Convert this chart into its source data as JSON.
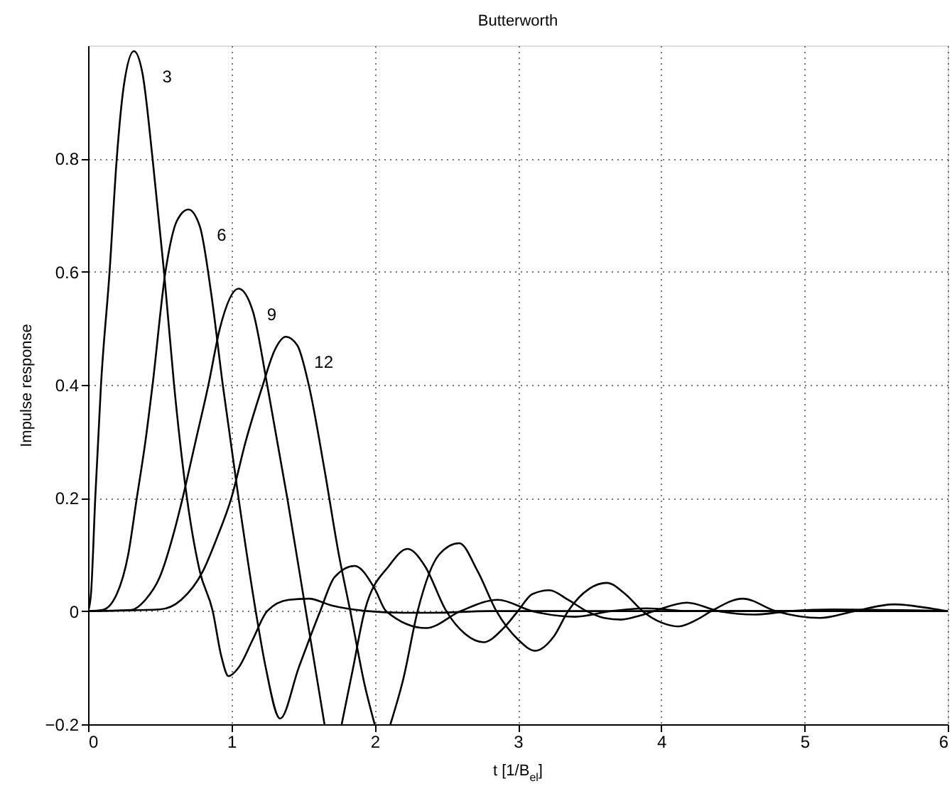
{
  "chart_data": {
    "type": "line",
    "title": "Butterworth",
    "xlabel": "t [1/B$_{el}$]",
    "ylabel": "Impulse response",
    "xlim": [
      0,
      6
    ],
    "xticks": [
      0,
      1,
      2,
      3,
      4,
      5,
      6
    ],
    "ylim": [
      -0.2,
      1.0
    ],
    "yticks": [
      -0.2,
      0,
      0.2,
      0.4,
      0.6,
      0.8
    ],
    "grid": true,
    "legend": false,
    "line_style": "solid",
    "marker": "none",
    "series": [
      {
        "name": "3",
        "color": "#000000",
        "x": [
          0,
          0.02,
          0.05,
          0.09,
          0.15,
          0.2,
          0.25,
          0.32,
          0.38,
          0.45,
          0.53,
          0.6,
          0.69,
          0.78,
          0.87,
          0.93,
          0.98,
          1.05,
          1.15,
          1.25,
          1.4,
          1.54,
          1.7,
          1.95,
          2.2,
          2.4,
          2.8,
          3.5,
          6
        ],
        "values": [
          0,
          0.03,
          0.2,
          0.4,
          0.6,
          0.8,
          0.93,
          0.99,
          0.95,
          0.8,
          0.6,
          0.4,
          0.2,
          0.07,
          0,
          -0.08,
          -0.115,
          -0.1,
          -0.05,
          0,
          0.02,
          0.022,
          0.01,
          0,
          -0.003,
          -0.003,
          0,
          0,
          0
        ]
      },
      {
        "name": "6",
        "color": "#000000",
        "x": [
          0,
          0.1,
          0.2,
          0.28,
          0.34,
          0.4,
          0.45,
          0.54,
          0.62,
          0.7,
          0.78,
          0.86,
          0.94,
          1.05,
          1.17,
          1.24,
          1.34,
          1.47,
          1.62,
          1.72,
          1.86,
          2.0,
          2.08,
          2.36,
          2.6,
          2.86,
          3.1,
          3.4,
          3.65,
          3.9,
          4.2,
          6
        ],
        "values": [
          0,
          0.002,
          0.03,
          0.1,
          0.2,
          0.3,
          0.4,
          0.6,
          0.69,
          0.71,
          0.68,
          0.56,
          0.4,
          0.2,
          0,
          -0.1,
          -0.19,
          -0.1,
          0,
          0.06,
          0.08,
          0.04,
          0,
          -0.03,
          0,
          0.02,
          0,
          -0.01,
          0,
          0.005,
          0,
          0
        ]
      },
      {
        "name": "9",
        "color": "#000000",
        "x": [
          0,
          0.3,
          0.4,
          0.5,
          0.6,
          0.66,
          0.75,
          0.84,
          0.92,
          1.05,
          1.15,
          1.25,
          1.39,
          1.52,
          1.65,
          1.71,
          1.77,
          1.85,
          1.93,
          2.1,
          2.23,
          2.35,
          2.5,
          2.63,
          2.76,
          2.9,
          3.0,
          3.1,
          3.22,
          3.35,
          3.48,
          3.6,
          3.72,
          3.85,
          3.95,
          4.18,
          4.4,
          4.65,
          4.9,
          5.2,
          6
        ],
        "values": [
          0,
          0.002,
          0.02,
          0.06,
          0.14,
          0.2,
          0.3,
          0.4,
          0.5,
          0.57,
          0.53,
          0.4,
          0.2,
          0,
          -0.2,
          null,
          -0.2,
          -0.1,
          0,
          0.08,
          0.11,
          0.08,
          0,
          -0.04,
          -0.055,
          -0.03,
          0,
          0.03,
          0.037,
          0.02,
          0,
          -0.012,
          -0.015,
          -0.008,
          0,
          0.015,
          0,
          -0.006,
          0,
          0.003,
          0
        ]
      },
      {
        "name": "12",
        "color": "#000000",
        "x": [
          0,
          0.5,
          0.65,
          0.8,
          0.9,
          1.0,
          1.1,
          1.22,
          1.3,
          1.38,
          1.46,
          1.54,
          1.65,
          1.75,
          1.83,
          1.93,
          2.0,
          2.05,
          2.11,
          2.2,
          2.3,
          2.45,
          2.59,
          2.72,
          2.85,
          3.0,
          3.12,
          3.25,
          3.35,
          3.5,
          3.62,
          3.75,
          3.87,
          4.0,
          4.12,
          4.25,
          4.35,
          4.57,
          4.8,
          5.11,
          5.35,
          5.63,
          5.9,
          6
        ],
        "values": [
          0,
          0.003,
          0.02,
          0.07,
          0.13,
          0.2,
          0.3,
          0.4,
          0.46,
          0.485,
          0.47,
          0.4,
          0.25,
          0.1,
          0,
          -0.13,
          -0.2,
          null,
          -0.2,
          -0.12,
          0,
          0.1,
          0.12,
          0.07,
          0,
          -0.05,
          -0.07,
          -0.045,
          0,
          0.04,
          0.05,
          0.03,
          0,
          -0.02,
          -0.027,
          -0.015,
          0,
          0.022,
          0,
          -0.012,
          0,
          0.012,
          0.004,
          0
        ]
      }
    ]
  }
}
